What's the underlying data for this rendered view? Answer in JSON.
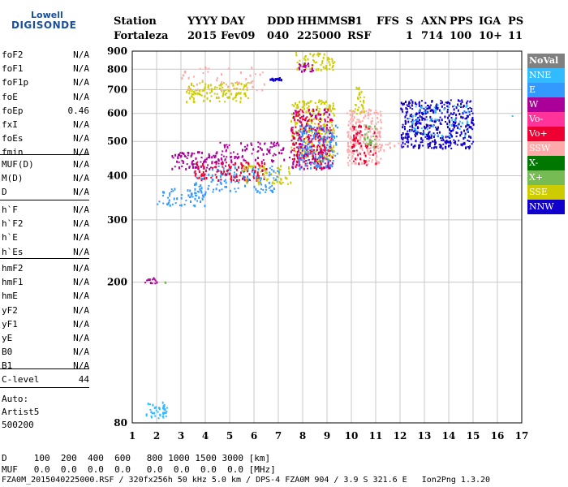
{
  "logo": {
    "line1": "Lowell",
    "line2": "DIGISONDE"
  },
  "header": {
    "labels": [
      "Station",
      "YYYY",
      "DAY",
      "DDD",
      "HHMMSS",
      "P1",
      "FFS",
      "S",
      "AXN",
      "PPS",
      "IGA",
      "PS"
    ],
    "values": [
      "Fortaleza",
      "2015",
      "Fev09",
      "040",
      "225000",
      "RSF",
      "1",
      "714",
      "100",
      "10+",
      "11"
    ]
  },
  "params_group1": [
    {
      "name": "foF2",
      "value": "N/A"
    },
    {
      "name": "foF1",
      "value": "N/A"
    },
    {
      "name": "foF1p",
      "value": "N/A"
    },
    {
      "name": "foE",
      "value": "N/A"
    },
    {
      "name": "foEp",
      "value": "0.46"
    },
    {
      "name": "fxI",
      "value": "N/A"
    },
    {
      "name": "foEs",
      "value": "N/A"
    },
    {
      "name": "fmin",
      "value": "N/A"
    }
  ],
  "params_group2": [
    {
      "name": "MUF(D)",
      "value": "N/A"
    },
    {
      "name": "M(D)",
      "value": "N/A"
    },
    {
      "name": "D",
      "value": "N/A"
    }
  ],
  "params_group3": [
    {
      "name": "h`F",
      "value": "N/A"
    },
    {
      "name": "h`F2",
      "value": "N/A"
    },
    {
      "name": "h`E",
      "value": "N/A"
    },
    {
      "name": "h`Es",
      "value": "N/A"
    }
  ],
  "params_group4": [
    {
      "name": "hmF2",
      "value": "N/A"
    },
    {
      "name": "hmF1",
      "value": "N/A"
    },
    {
      "name": "hmE",
      "value": "N/A"
    },
    {
      "name": "yF2",
      "value": "N/A"
    },
    {
      "name": "yF1",
      "value": "N/A"
    },
    {
      "name": "yE",
      "value": "N/A"
    },
    {
      "name": "B0",
      "value": "N/A"
    },
    {
      "name": "B1",
      "value": "N/A"
    }
  ],
  "clevel": {
    "name": "C-level",
    "value": "44"
  },
  "autoscale": {
    "line1": "Auto:",
    "line2": "Artist5",
    "line3": "500200"
  },
  "legend": [
    {
      "label": "NoVal",
      "color": "#808080",
      "bold": true
    },
    {
      "label": "NNE",
      "color": "#33bbff",
      "bold": false
    },
    {
      "label": "E",
      "color": "#3399ff",
      "bold": false
    },
    {
      "label": "W",
      "color": "#aa0099",
      "bold": false
    },
    {
      "label": "Vo-",
      "color": "#ff3399",
      "bold": false
    },
    {
      "label": "Vo+",
      "color": "#ee0033",
      "bold": false
    },
    {
      "label": "SSW",
      "color": "#ffaaaa",
      "bold": false
    },
    {
      "label": "X-",
      "color": "#007700",
      "bold": false
    },
    {
      "label": "X+",
      "color": "#77bb55",
      "bold": false
    },
    {
      "label": "SSE",
      "color": "#cccc00",
      "bold": false
    },
    {
      "label": "NNW",
      "color": "#1100cc",
      "bold": false
    }
  ],
  "bottom": {
    "d_line": "D     100  200  400  600   800 1000 1500 3000 [km]",
    "muf_line": "MUF   0.0  0.0  0.0  0.0   0.0  0.0  0.0  0.0 [MHz]",
    "footer": "FZA0M_2015040225000.RSF / 320fx256h 50 kHz 5.0 km / DPS-4 FZA0M 904 / 3.9 S 321.6 E   Ion2Png 1.3.20"
  },
  "chart_data": {
    "type": "scatter",
    "xlim": [
      1,
      17
    ],
    "ylim": [
      80,
      900
    ],
    "yscale": "log",
    "x_ticks": [
      1,
      2,
      3,
      4,
      5,
      6,
      7,
      8,
      9,
      10,
      11,
      12,
      13,
      14,
      15,
      16,
      17
    ],
    "y_ticks": [
      80,
      200,
      300,
      400,
      500,
      600,
      700,
      800,
      900
    ],
    "grid": true,
    "clusters": [
      {
        "series": "NNE",
        "x": [
          1.55,
          2.4
        ],
        "y": [
          82,
          92
        ],
        "n": 40
      },
      {
        "series": "W",
        "x": [
          1.5,
          2.1
        ],
        "y": [
          198,
          208
        ],
        "n": 12
      },
      {
        "series": "X+",
        "x": [
          2.3,
          2.4
        ],
        "y": [
          200,
          208
        ],
        "n": 3
      },
      {
        "series": "E",
        "x": [
          2.0,
          4.0
        ],
        "y": [
          330,
          370
        ],
        "n": 60
      },
      {
        "series": "E",
        "x": [
          3.5,
          7.0
        ],
        "y": [
          360,
          430
        ],
        "n": 140
      },
      {
        "series": "SSE",
        "x": [
          3.2,
          5.8
        ],
        "y": [
          650,
          740
        ],
        "n": 120
      },
      {
        "series": "SSW",
        "x": [
          3.0,
          6.5
        ],
        "y": [
          700,
          820
        ],
        "n": 50
      },
      {
        "series": "W",
        "x": [
          2.6,
          4.8
        ],
        "y": [
          420,
          470
        ],
        "n": 90
      },
      {
        "series": "Vo+",
        "x": [
          3.5,
          6.5
        ],
        "y": [
          390,
          440
        ],
        "n": 120
      },
      {
        "series": "W",
        "x": [
          4.5,
          7.5
        ],
        "y": [
          440,
          500
        ],
        "n": 90
      },
      {
        "series": "SSE",
        "x": [
          5.5,
          7.5
        ],
        "y": [
          380,
          430
        ],
        "n": 60
      },
      {
        "series": "NNW",
        "x": [
          6.6,
          7.1
        ],
        "y": [
          745,
          760
        ],
        "n": 20
      },
      {
        "series": "SSE",
        "x": [
          7.5,
          9.3
        ],
        "y": [
          440,
          660
        ],
        "n": 220
      },
      {
        "series": "Vo+",
        "x": [
          7.5,
          9.2
        ],
        "y": [
          420,
          620
        ],
        "n": 200
      },
      {
        "series": "W",
        "x": [
          7.5,
          9.2
        ],
        "y": [
          420,
          620
        ],
        "n": 150
      },
      {
        "series": "E",
        "x": [
          7.8,
          9.4
        ],
        "y": [
          420,
          560
        ],
        "n": 120
      },
      {
        "series": "SSE",
        "x": [
          7.7,
          9.3
        ],
        "y": [
          800,
          900
        ],
        "n": 60
      },
      {
        "series": "W",
        "x": [
          7.8,
          8.4
        ],
        "y": [
          790,
          840
        ],
        "n": 25
      },
      {
        "series": "SSW",
        "x": [
          9.8,
          11.2
        ],
        "y": [
          430,
          620
        ],
        "n": 220
      },
      {
        "series": "Vo+",
        "x": [
          10.0,
          11.0
        ],
        "y": [
          430,
          560
        ],
        "n": 60
      },
      {
        "series": "SSE",
        "x": [
          10.0,
          10.5
        ],
        "y": [
          600,
          720
        ],
        "n": 30
      },
      {
        "series": "X+",
        "x": [
          10.5,
          11.0
        ],
        "y": [
          480,
          560
        ],
        "n": 25
      },
      {
        "series": "NNW",
        "x": [
          12.0,
          15.0
        ],
        "y": [
          480,
          660
        ],
        "n": 420
      },
      {
        "series": "NNE",
        "x": [
          12.3,
          14.8
        ],
        "y": [
          520,
          640
        ],
        "n": 60
      },
      {
        "series": "SSW",
        "x": [
          11.0,
          12.3
        ],
        "y": [
          475,
          500
        ],
        "n": 12
      },
      {
        "series": "NNE",
        "x": [
          16.5,
          16.6
        ],
        "y": [
          590,
          595
        ],
        "n": 1
      }
    ]
  }
}
